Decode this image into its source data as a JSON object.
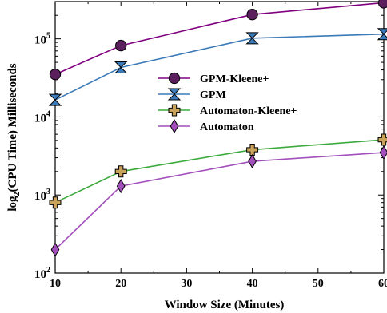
{
  "chart_data": {
    "type": "line",
    "title": "",
    "xlabel": "Window Size (Minutes)",
    "ylabel_parts": {
      "prefix": "log",
      "sub": "2",
      "suffix": "(CPU Time) Milliseconds"
    },
    "x_ticks": [
      10,
      20,
      30,
      40,
      50,
      60
    ],
    "xlim": [
      10,
      60
    ],
    "y_scale": "log",
    "ylim": [
      100,
      300000
    ],
    "y_ticks": [
      {
        "value": 100,
        "base": "10",
        "exp": "2"
      },
      {
        "value": 1000,
        "base": "10",
        "exp": "3"
      },
      {
        "value": 10000,
        "base": "10",
        "exp": "4"
      },
      {
        "value": 100000,
        "base": "10",
        "exp": "5"
      }
    ],
    "legend_position": "center",
    "grid": false,
    "series": [
      {
        "name": "GPM-Kleene+",
        "marker": "circle",
        "color": "#800080",
        "fill": "#5a1f5c",
        "x": [
          10,
          20,
          40,
          60
        ],
        "y": [
          35000,
          82000,
          205000,
          290000
        ]
      },
      {
        "name": "GPM",
        "marker": "hourglass",
        "color": "#3a7ab8",
        "fill": "#3a7ab8",
        "x": [
          10,
          20,
          40,
          60
        ],
        "y": [
          16500,
          43000,
          102000,
          115000
        ]
      },
      {
        "name": "Automaton-Kleene+",
        "marker": "plus",
        "color": "#3caa3c",
        "fill": "#c9a35a",
        "x": [
          10,
          20,
          40,
          60
        ],
        "y": [
          800,
          2000,
          3800,
          5100
        ]
      },
      {
        "name": "Automaton",
        "marker": "diamond",
        "color": "#a24fbb",
        "fill": "#a24fbb",
        "x": [
          10,
          20,
          40,
          60
        ],
        "y": [
          200,
          1300,
          2700,
          3500
        ]
      }
    ]
  }
}
